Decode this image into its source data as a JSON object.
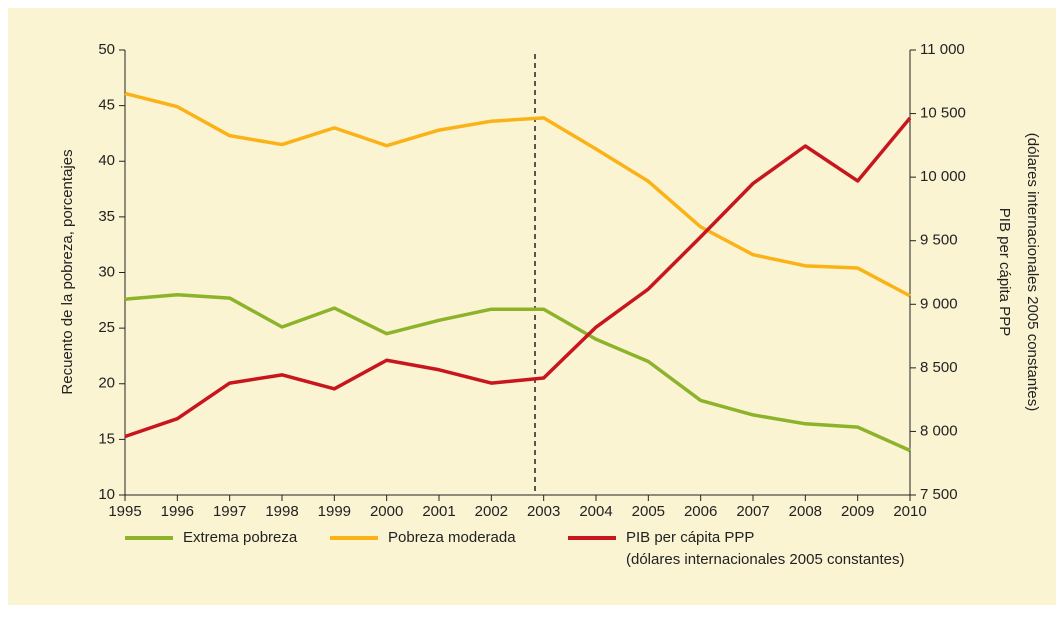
{
  "chart_data": {
    "type": "line",
    "ylabel": "Recuento de la pobreza, porcentajes",
    "y2label": [
      "PIB per cápita PPP",
      "(dólares internacionales 2005 constantes)"
    ],
    "x": [
      1995,
      1996,
      1997,
      1998,
      1999,
      2000,
      2001,
      2002,
      2003,
      2004,
      2005,
      2006,
      2007,
      2008,
      2009,
      2010
    ],
    "xlim": [
      1995,
      2010
    ],
    "xticks": [
      1995,
      1996,
      1997,
      1998,
      1999,
      2000,
      2001,
      2002,
      2003,
      2004,
      2005,
      2006,
      2007,
      2008,
      2009,
      2010
    ],
    "ylim": [
      10,
      50
    ],
    "yticks": [
      10,
      15,
      20,
      25,
      30,
      35,
      40,
      45,
      50
    ],
    "y2lim": [
      7500,
      11000
    ],
    "y2ticks": [
      {
        "value": 7500,
        "label": "7 500"
      },
      {
        "value": 8000,
        "label": "8 000"
      },
      {
        "value": 8500,
        "label": "8 500"
      },
      {
        "value": 9000,
        "label": "9 000"
      },
      {
        "value": 9500,
        "label": "9 500"
      },
      {
        "value": 10000,
        "label": "10 000"
      },
      {
        "value": 10500,
        "label": "10 500"
      },
      {
        "value": 11000,
        "label": "11 000"
      }
    ],
    "grid": false,
    "series": [
      {
        "name": "Extrema pobreza",
        "color": "#8db32b",
        "values": [
          27.6,
          28.0,
          27.7,
          25.1,
          26.8,
          24.5,
          25.7,
          26.7,
          26.7,
          24.0,
          22.0,
          18.5,
          17.2,
          16.4,
          16.1,
          14.0
        ]
      },
      {
        "name": "Pobreza moderada",
        "color": "#fbb216",
        "values": [
          46.1,
          44.9,
          42.3,
          41.5,
          43.0,
          41.4,
          42.8,
          43.6,
          43.9,
          41.1,
          38.2,
          34.1,
          31.6,
          30.6,
          30.4,
          27.9
        ]
      },
      {
        "name": "PIB per cápita PPP\n(dólares internacionales 2005 constantes)",
        "color": "#c8161e",
        "axis": "y2",
        "values": [
          7960,
          8100,
          8380,
          8445,
          8335,
          8560,
          8485,
          8380,
          8420,
          8820,
          9120,
          9530,
          9950,
          10245,
          9970,
          10465
        ]
      }
    ]
  }
}
